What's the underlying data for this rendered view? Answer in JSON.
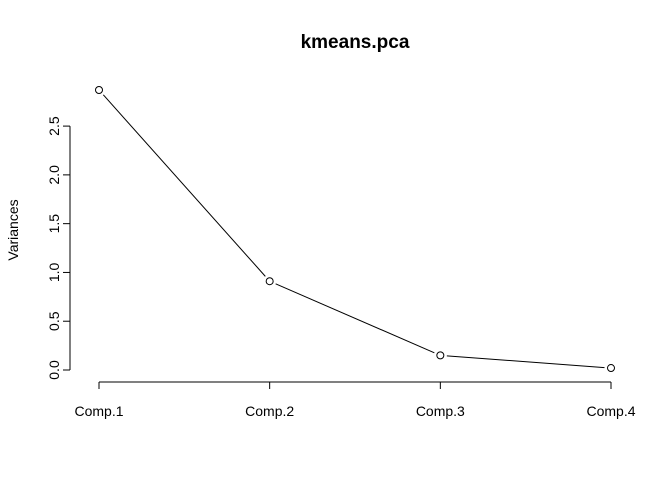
{
  "chart_data": {
    "type": "line",
    "title": "kmeans.pca",
    "xlabel": "",
    "ylabel": "Variances",
    "categories": [
      "Comp.1",
      "Comp.2",
      "Comp.3",
      "Comp.4"
    ],
    "series": [
      {
        "name": "Variances",
        "values": [
          2.87,
          0.91,
          0.15,
          0.02
        ]
      }
    ],
    "y_ticks": [
      0.0,
      0.5,
      1.0,
      1.5,
      2.0,
      2.5
    ],
    "y_tick_labels": [
      "0.0",
      "0.5",
      "1.0",
      "1.5",
      "2.0",
      "2.5"
    ],
    "ylim": [
      0.0,
      2.87
    ],
    "grid": false,
    "legend": "none",
    "marker": "open-circle",
    "line_color": "#000000"
  }
}
